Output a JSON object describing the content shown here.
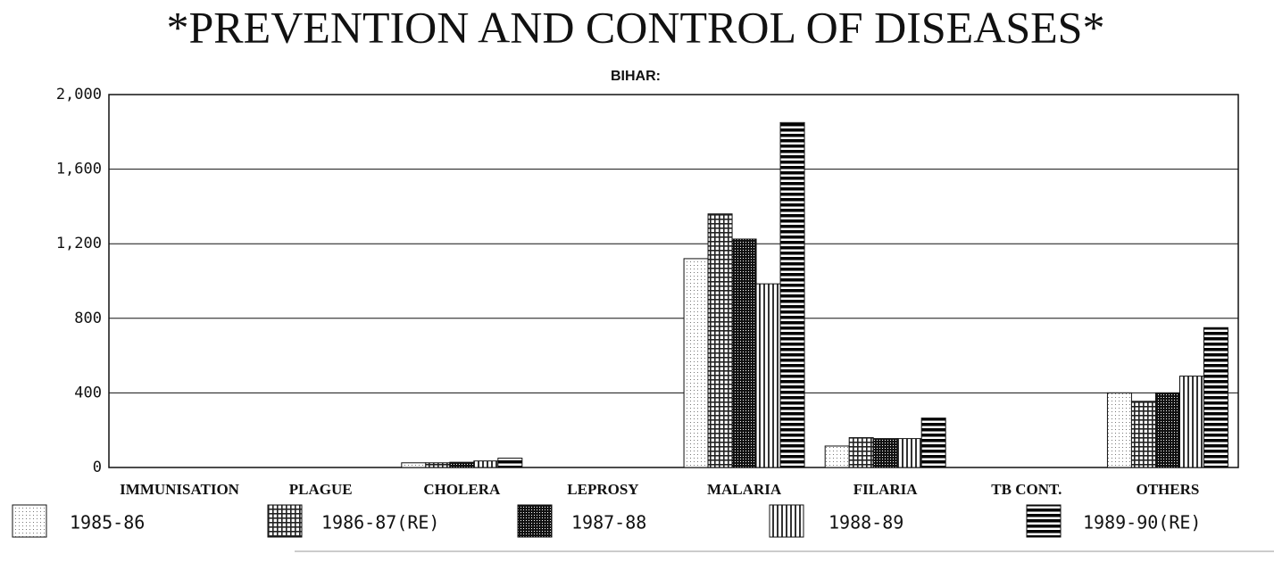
{
  "chart_data": {
    "type": "bar",
    "title": "*PREVENTION AND CONTROL OF DISEASES*",
    "subtitle": "BIHAR:",
    "categories": [
      "IMMUNISATION",
      "PLAGUE",
      "CHOLERA",
      "LEPROSY",
      "MALARIA",
      "FILARIA",
      "TB CONT.",
      "OTHERS"
    ],
    "series": [
      {
        "name": "1985-86",
        "color": "#777777",
        "values": [
          0,
          0,
          25,
          0,
          1120,
          115,
          0,
          400
        ]
      },
      {
        "name": "1986-87(RE)",
        "color": "#222222",
        "values": [
          0,
          0,
          25,
          0,
          1360,
          160,
          0,
          355
        ]
      },
      {
        "name": "1987-88",
        "color": "#111111",
        "values": [
          0,
          0,
          28,
          0,
          1225,
          155,
          0,
          400
        ]
      },
      {
        "name": "1988-89",
        "color": "#333333",
        "values": [
          0,
          0,
          35,
          0,
          985,
          155,
          0,
          490
        ]
      },
      {
        "name": "1989-90(RE)",
        "color": "#000000",
        "values": [
          0,
          0,
          50,
          0,
          1850,
          265,
          0,
          750
        ]
      }
    ],
    "ylim": [
      0,
      2000
    ],
    "yticks": [
      0,
      {
        "value": 400,
        "label": "400"
      },
      {
        "value": 800,
        "label": "800"
      },
      {
        "value": 1200,
        "label": "1,200"
      },
      {
        "value": 1600,
        "label": "1,600"
      },
      {
        "value": 2000,
        "label": "2,000"
      }
    ],
    "grid": true
  }
}
